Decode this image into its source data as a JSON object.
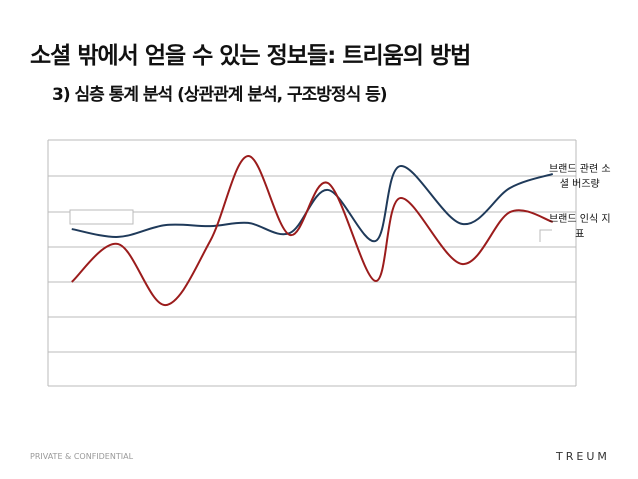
{
  "chart_data": {
    "type": "line",
    "title": "소셜 밖에서 얻을 수 있는 정보들: 트리움의 방법",
    "subtitle": "3) 심층 통계 분석 (상관관계 분석, 구조방정식 등)",
    "x": [
      4.5,
      13.3,
      22.2,
      30.7,
      37.9,
      45.8,
      53,
      62,
      66.7,
      78.4,
      87.5,
      95.6
    ],
    "xlim": [
      0,
      100
    ],
    "ylim": [
      0,
      100
    ],
    "grid": true,
    "series": [
      {
        "name": "브랜드 관련 소셜 버즈량",
        "color": "#1f3a5a",
        "values": [
          63.8,
          60.6,
          65.4,
          65,
          66.3,
          62.2,
          79.7,
          58.9,
          89.4,
          65.9,
          80.5,
          86.2
        ]
      },
      {
        "name": "브랜드 인식 지표",
        "color": "#9b1c1c",
        "values": [
          42.3,
          57.7,
          32.9,
          58.9,
          93.5,
          61.4,
          82.5,
          42.7,
          76.4,
          49.6,
          70.7,
          66.7
        ]
      }
    ]
  },
  "footer": "PRIVATE & CONFIDENTIAL",
  "logo": "TREUM"
}
